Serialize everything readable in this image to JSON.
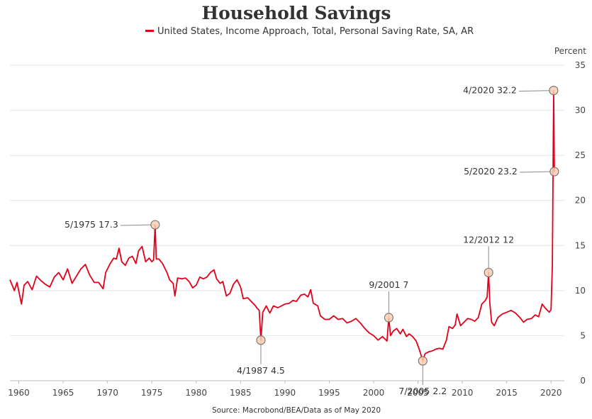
{
  "chart_data": {
    "type": "line",
    "title": "Household Savings",
    "xlabel": "",
    "ylabel": "Percent",
    "source": "Source: Macrobond/BEA/Data as of May 2020",
    "xlim": [
      1959,
      2021.5
    ],
    "ylim": [
      0,
      35
    ],
    "x_ticks": [
      "1960",
      "1965",
      "1970",
      "1975",
      "1980",
      "1985",
      "1990",
      "1995",
      "2000",
      "2005",
      "2010",
      "2015",
      "2020"
    ],
    "y_ticks": [
      "0",
      "5",
      "10",
      "15",
      "20",
      "25",
      "30",
      "35"
    ],
    "grid": true,
    "legend_position": "top-center",
    "colors": {
      "series": "#e3001b",
      "marker_fill": "#facdb2",
      "grid": "#e4e4e4"
    },
    "series": [
      {
        "name": "United States, Income Approach, Total, Personal Saving Rate, SA, AR",
        "points": [
          [
            1959.0,
            11.2
          ],
          [
            1959.5,
            10.0
          ],
          [
            1959.8,
            10.9
          ],
          [
            1960.3,
            8.5
          ],
          [
            1960.6,
            10.6
          ],
          [
            1961.0,
            11.0
          ],
          [
            1961.5,
            10.1
          ],
          [
            1962.0,
            11.6
          ],
          [
            1962.5,
            11.1
          ],
          [
            1963.0,
            10.7
          ],
          [
            1963.5,
            10.4
          ],
          [
            1964.0,
            11.5
          ],
          [
            1964.5,
            12.0
          ],
          [
            1965.0,
            11.2
          ],
          [
            1965.5,
            12.4
          ],
          [
            1966.0,
            10.8
          ],
          [
            1966.5,
            11.6
          ],
          [
            1967.0,
            12.4
          ],
          [
            1967.5,
            12.9
          ],
          [
            1968.0,
            11.7
          ],
          [
            1968.5,
            10.9
          ],
          [
            1969.0,
            10.9
          ],
          [
            1969.5,
            10.2
          ],
          [
            1969.8,
            12.0
          ],
          [
            1970.3,
            13.0
          ],
          [
            1970.7,
            13.6
          ],
          [
            1971.0,
            13.5
          ],
          [
            1971.3,
            14.7
          ],
          [
            1971.6,
            13.2
          ],
          [
            1972.0,
            12.8
          ],
          [
            1972.4,
            13.6
          ],
          [
            1972.8,
            13.8
          ],
          [
            1973.2,
            13.0
          ],
          [
            1973.5,
            14.4
          ],
          [
            1973.9,
            14.9
          ],
          [
            1974.3,
            13.2
          ],
          [
            1974.7,
            13.6
          ],
          [
            1975.0,
            13.2
          ],
          [
            1975.2,
            13.4
          ],
          [
            1975.37,
            17.3
          ],
          [
            1975.5,
            13.5
          ],
          [
            1975.8,
            13.5
          ],
          [
            1976.2,
            13.0
          ],
          [
            1976.7,
            12.0
          ],
          [
            1977.0,
            11.2
          ],
          [
            1977.4,
            10.8
          ],
          [
            1977.6,
            9.4
          ],
          [
            1977.9,
            11.4
          ],
          [
            1978.4,
            11.3
          ],
          [
            1978.8,
            11.4
          ],
          [
            1979.2,
            11.0
          ],
          [
            1979.6,
            10.3
          ],
          [
            1980.0,
            10.6
          ],
          [
            1980.4,
            11.5
          ],
          [
            1980.8,
            11.3
          ],
          [
            1981.2,
            11.5
          ],
          [
            1981.6,
            12.0
          ],
          [
            1982.0,
            12.3
          ],
          [
            1982.3,
            11.3
          ],
          [
            1982.7,
            10.8
          ],
          [
            1983.0,
            11.0
          ],
          [
            1983.4,
            9.4
          ],
          [
            1983.8,
            9.7
          ],
          [
            1984.2,
            10.7
          ],
          [
            1984.6,
            11.2
          ],
          [
            1985.0,
            10.4
          ],
          [
            1985.3,
            9.1
          ],
          [
            1985.8,
            9.2
          ],
          [
            1986.2,
            8.8
          ],
          [
            1986.6,
            8.4
          ],
          [
            1986.9,
            8.0
          ],
          [
            1987.1,
            7.8
          ],
          [
            1987.29,
            4.5
          ],
          [
            1987.5,
            7.6
          ],
          [
            1987.9,
            8.3
          ],
          [
            1988.3,
            7.5
          ],
          [
            1988.7,
            8.3
          ],
          [
            1989.2,
            8.1
          ],
          [
            1989.6,
            8.3
          ],
          [
            1990.0,
            8.5
          ],
          [
            1990.5,
            8.6
          ],
          [
            1990.9,
            8.9
          ],
          [
            1991.3,
            8.8
          ],
          [
            1991.8,
            9.5
          ],
          [
            1992.2,
            9.6
          ],
          [
            1992.6,
            9.3
          ],
          [
            1992.9,
            10.1
          ],
          [
            1993.2,
            8.6
          ],
          [
            1993.7,
            8.3
          ],
          [
            1994.0,
            7.2
          ],
          [
            1994.5,
            6.8
          ],
          [
            1995.0,
            6.8
          ],
          [
            1995.5,
            7.2
          ],
          [
            1996.0,
            6.8
          ],
          [
            1996.5,
            6.9
          ],
          [
            1997.0,
            6.4
          ],
          [
            1997.5,
            6.6
          ],
          [
            1998.0,
            6.9
          ],
          [
            1998.5,
            6.4
          ],
          [
            1999.0,
            5.8
          ],
          [
            1999.5,
            5.3
          ],
          [
            2000.0,
            5.0
          ],
          [
            2000.5,
            4.5
          ],
          [
            2001.0,
            4.9
          ],
          [
            2001.3,
            4.6
          ],
          [
            2001.5,
            4.4
          ],
          [
            2001.71,
            7.0
          ],
          [
            2001.9,
            5.0
          ],
          [
            2002.2,
            5.5
          ],
          [
            2002.6,
            5.8
          ],
          [
            2003.0,
            5.2
          ],
          [
            2003.3,
            5.7
          ],
          [
            2003.7,
            4.9
          ],
          [
            2004.0,
            5.2
          ],
          [
            2004.4,
            4.9
          ],
          [
            2004.8,
            4.4
          ],
          [
            2005.1,
            3.6
          ],
          [
            2005.3,
            3.0
          ],
          [
            2005.54,
            2.2
          ],
          [
            2005.8,
            3.0
          ],
          [
            2006.2,
            3.2
          ],
          [
            2006.6,
            3.3
          ],
          [
            2007.0,
            3.5
          ],
          [
            2007.4,
            3.6
          ],
          [
            2007.8,
            3.5
          ],
          [
            2008.2,
            4.5
          ],
          [
            2008.5,
            6.0
          ],
          [
            2008.9,
            5.8
          ],
          [
            2009.2,
            6.2
          ],
          [
            2009.4,
            7.4
          ],
          [
            2009.8,
            6.1
          ],
          [
            2010.2,
            6.5
          ],
          [
            2010.6,
            6.9
          ],
          [
            2011.0,
            6.8
          ],
          [
            2011.4,
            6.6
          ],
          [
            2011.8,
            7.0
          ],
          [
            2012.2,
            8.5
          ],
          [
            2012.6,
            8.9
          ],
          [
            2012.8,
            9.3
          ],
          [
            2012.96,
            12.0
          ],
          [
            2013.1,
            8.6
          ],
          [
            2013.3,
            6.5
          ],
          [
            2013.6,
            6.1
          ],
          [
            2014.0,
            7.0
          ],
          [
            2014.5,
            7.4
          ],
          [
            2015.0,
            7.6
          ],
          [
            2015.5,
            7.8
          ],
          [
            2016.0,
            7.5
          ],
          [
            2016.5,
            7.0
          ],
          [
            2016.9,
            6.5
          ],
          [
            2017.3,
            6.8
          ],
          [
            2017.8,
            6.9
          ],
          [
            2018.2,
            7.3
          ],
          [
            2018.6,
            7.1
          ],
          [
            2019.0,
            8.5
          ],
          [
            2019.4,
            8.0
          ],
          [
            2019.8,
            7.6
          ],
          [
            2020.0,
            7.9
          ],
          [
            2020.15,
            12.8
          ],
          [
            2020.29,
            32.2
          ],
          [
            2020.37,
            23.2
          ]
        ]
      }
    ],
    "annotations": [
      {
        "x": 1975.37,
        "y": 17.3,
        "label": "5/1975 17.3",
        "anchor": "left"
      },
      {
        "x": 1987.29,
        "y": 4.5,
        "label": "4/1987 4.5",
        "anchor": "below"
      },
      {
        "x": 2001.71,
        "y": 7.0,
        "label": "9/2001 7",
        "anchor": "above"
      },
      {
        "x": 2005.54,
        "y": 2.2,
        "label": "7/2005 2.2",
        "anchor": "below"
      },
      {
        "x": 2012.96,
        "y": 12.0,
        "label": "12/2012 12",
        "anchor": "above"
      },
      {
        "x": 2020.29,
        "y": 32.2,
        "label": "4/2020 32.2",
        "anchor": "left"
      },
      {
        "x": 2020.37,
        "y": 23.2,
        "label": "5/2020 23.2",
        "anchor": "left"
      }
    ]
  }
}
